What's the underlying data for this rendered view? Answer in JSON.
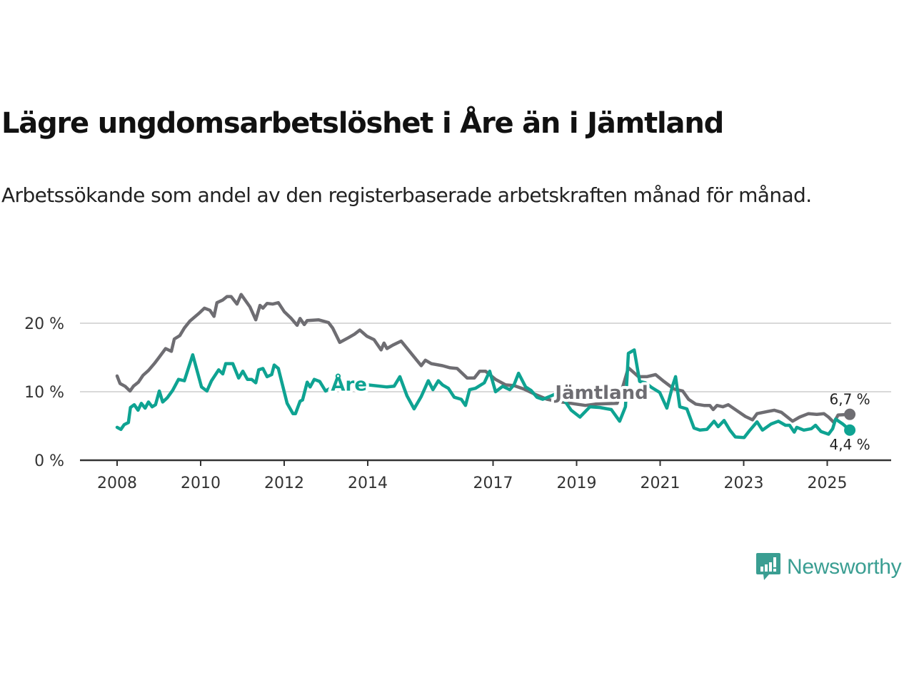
{
  "header": {
    "title": "Lägre ungdomsarbetslöshet i Åre än i Jämtland",
    "subtitle": "Arbetssökande som andel av den registerbaserade arbetskraften månad för månad."
  },
  "branding": {
    "name": "Newsworthy",
    "icon": "newsworthy-chart-bubble-icon",
    "color": "#3a9e92"
  },
  "chart_data": {
    "type": "line",
    "title": "Lägre ungdomsarbetslöshet i Åre än i Jämtland",
    "subtitle": "Arbetssökande som andel av den registerbaserade arbetskraften månad för månad.",
    "xlabel": "",
    "ylabel": "",
    "xlim": [
      2007.2,
      2026.5
    ],
    "ylim": [
      0,
      25
    ],
    "y_ticks": [
      0,
      10,
      20
    ],
    "y_tick_labels": [
      "0 %",
      "10 %",
      "20 %"
    ],
    "x_ticks": [
      2008,
      2010,
      2012,
      2014,
      2017,
      2019,
      2021,
      2023,
      2025
    ],
    "x_tick_labels": [
      "2008",
      "2010",
      "2012",
      "2014",
      "2017",
      "2019",
      "2021",
      "2023",
      "2025"
    ],
    "grid": "horizontal",
    "legend": "inline labels",
    "series": [
      {
        "name": "Jämtland",
        "color": "#6e6d72",
        "end_label": "6,7 %",
        "end_value": 6.7,
        "points": [
          [
            2008.0,
            12.3
          ],
          [
            2008.07,
            11.2
          ],
          [
            2008.19,
            10.8
          ],
          [
            2008.31,
            10.1
          ],
          [
            2008.39,
            10.8
          ],
          [
            2008.51,
            11.4
          ],
          [
            2008.62,
            12.4
          ],
          [
            2008.75,
            13.1
          ],
          [
            2008.89,
            14.1
          ],
          [
            2008.99,
            14.9
          ],
          [
            2009.16,
            16.3
          ],
          [
            2009.3,
            15.9
          ],
          [
            2009.37,
            17.7
          ],
          [
            2009.5,
            18.2
          ],
          [
            2009.61,
            19.3
          ],
          [
            2009.74,
            20.3
          ],
          [
            2009.95,
            21.4
          ],
          [
            2010.09,
            22.2
          ],
          [
            2010.22,
            21.9
          ],
          [
            2010.32,
            21.0
          ],
          [
            2010.39,
            23.0
          ],
          [
            2010.53,
            23.4
          ],
          [
            2010.63,
            23.9
          ],
          [
            2010.73,
            23.9
          ],
          [
            2010.87,
            22.8
          ],
          [
            2010.97,
            24.2
          ],
          [
            2011.18,
            22.4
          ],
          [
            2011.32,
            20.5
          ],
          [
            2011.42,
            22.6
          ],
          [
            2011.49,
            22.2
          ],
          [
            2011.59,
            22.9
          ],
          [
            2011.73,
            22.8
          ],
          [
            2011.86,
            23.0
          ],
          [
            2012.0,
            21.7
          ],
          [
            2012.17,
            20.7
          ],
          [
            2012.31,
            19.7
          ],
          [
            2012.38,
            20.7
          ],
          [
            2012.48,
            19.8
          ],
          [
            2012.55,
            20.4
          ],
          [
            2012.82,
            20.5
          ],
          [
            2013.06,
            20.1
          ],
          [
            2013.16,
            19.3
          ],
          [
            2013.33,
            17.2
          ],
          [
            2013.54,
            17.9
          ],
          [
            2013.68,
            18.4
          ],
          [
            2013.81,
            19.0
          ],
          [
            2013.98,
            18.1
          ],
          [
            2014.15,
            17.6
          ],
          [
            2014.32,
            16.1
          ],
          [
            2014.39,
            17.1
          ],
          [
            2014.46,
            16.3
          ],
          [
            2014.6,
            16.8
          ],
          [
            2014.8,
            17.4
          ],
          [
            2015.04,
            15.6
          ],
          [
            2015.28,
            13.8
          ],
          [
            2015.38,
            14.6
          ],
          [
            2015.52,
            14.1
          ],
          [
            2015.79,
            13.8
          ],
          [
            2015.97,
            13.5
          ],
          [
            2016.14,
            13.4
          ],
          [
            2016.38,
            12.0
          ],
          [
            2016.55,
            12.0
          ],
          [
            2016.68,
            13.0
          ],
          [
            2016.82,
            13.0
          ],
          [
            2017.06,
            11.8
          ],
          [
            2017.3,
            11.0
          ],
          [
            2017.5,
            10.9
          ],
          [
            2017.74,
            10.4
          ],
          [
            2017.98,
            9.7
          ],
          [
            2018.29,
            8.9
          ],
          [
            2018.53,
            8.6
          ],
          [
            2018.87,
            8.3
          ],
          [
            2019.21,
            8.0
          ],
          [
            2019.45,
            8.2
          ],
          [
            2019.97,
            8.3
          ],
          [
            2020.1,
            10.6
          ],
          [
            2020.24,
            13.5
          ],
          [
            2020.48,
            12.2
          ],
          [
            2020.68,
            12.2
          ],
          [
            2020.89,
            12.5
          ],
          [
            2021.09,
            11.5
          ],
          [
            2021.33,
            10.4
          ],
          [
            2021.54,
            10.1
          ],
          [
            2021.68,
            8.9
          ],
          [
            2021.85,
            8.2
          ],
          [
            2022.05,
            8.0
          ],
          [
            2022.19,
            8.0
          ],
          [
            2022.27,
            7.4
          ],
          [
            2022.36,
            8.0
          ],
          [
            2022.5,
            7.8
          ],
          [
            2022.63,
            8.1
          ],
          [
            2022.87,
            7.1
          ],
          [
            2023.04,
            6.4
          ],
          [
            2023.21,
            5.9
          ],
          [
            2023.32,
            6.8
          ],
          [
            2023.56,
            7.1
          ],
          [
            2023.73,
            7.3
          ],
          [
            2023.9,
            7.0
          ],
          [
            2024.17,
            5.7
          ],
          [
            2024.34,
            6.3
          ],
          [
            2024.55,
            6.8
          ],
          [
            2024.75,
            6.7
          ],
          [
            2024.92,
            6.8
          ],
          [
            2025.03,
            6.3
          ],
          [
            2025.16,
            5.5
          ],
          [
            2025.26,
            6.6
          ],
          [
            2025.54,
            6.7
          ]
        ]
      },
      {
        "name": "Åre",
        "color": "#0ea392",
        "end_label": "4,4 %",
        "end_value": 4.4,
        "points": [
          [
            2008.0,
            4.8
          ],
          [
            2008.09,
            4.5
          ],
          [
            2008.17,
            5.2
          ],
          [
            2008.27,
            5.5
          ],
          [
            2008.32,
            7.7
          ],
          [
            2008.41,
            8.1
          ],
          [
            2008.5,
            7.3
          ],
          [
            2008.58,
            8.3
          ],
          [
            2008.67,
            7.6
          ],
          [
            2008.75,
            8.5
          ],
          [
            2008.84,
            7.8
          ],
          [
            2008.92,
            8.1
          ],
          [
            2009.01,
            10.1
          ],
          [
            2009.09,
            8.5
          ],
          [
            2009.2,
            9.1
          ],
          [
            2009.33,
            10.2
          ],
          [
            2009.47,
            11.8
          ],
          [
            2009.61,
            11.6
          ],
          [
            2009.81,
            15.4
          ],
          [
            2010.02,
            10.7
          ],
          [
            2010.15,
            10.1
          ],
          [
            2010.26,
            11.6
          ],
          [
            2010.43,
            13.2
          ],
          [
            2010.53,
            12.6
          ],
          [
            2010.6,
            14.1
          ],
          [
            2010.77,
            14.1
          ],
          [
            2010.91,
            12.0
          ],
          [
            2011.01,
            13.0
          ],
          [
            2011.12,
            11.8
          ],
          [
            2011.22,
            11.8
          ],
          [
            2011.32,
            11.3
          ],
          [
            2011.39,
            13.2
          ],
          [
            2011.49,
            13.4
          ],
          [
            2011.59,
            12.2
          ],
          [
            2011.7,
            12.5
          ],
          [
            2011.76,
            13.9
          ],
          [
            2011.86,
            13.4
          ],
          [
            2012.07,
            8.3
          ],
          [
            2012.21,
            6.8
          ],
          [
            2012.27,
            6.8
          ],
          [
            2012.38,
            8.6
          ],
          [
            2012.44,
            8.8
          ],
          [
            2012.55,
            11.4
          ],
          [
            2012.62,
            10.7
          ],
          [
            2012.72,
            11.8
          ],
          [
            2012.85,
            11.5
          ],
          [
            2012.99,
            10.1
          ],
          [
            2013.16,
            10.7
          ],
          [
            2013.26,
            11.3
          ],
          [
            2013.5,
            11.1
          ],
          [
            2014.0,
            11.0
          ],
          [
            2014.46,
            10.7
          ],
          [
            2014.63,
            10.8
          ],
          [
            2014.77,
            12.2
          ],
          [
            2014.94,
            9.4
          ],
          [
            2015.11,
            7.5
          ],
          [
            2015.28,
            9.3
          ],
          [
            2015.45,
            11.6
          ],
          [
            2015.56,
            10.3
          ],
          [
            2015.69,
            11.6
          ],
          [
            2015.79,
            11.0
          ],
          [
            2015.93,
            10.5
          ],
          [
            2016.07,
            9.2
          ],
          [
            2016.24,
            8.9
          ],
          [
            2016.34,
            8.0
          ],
          [
            2016.44,
            10.3
          ],
          [
            2016.58,
            10.5
          ],
          [
            2016.79,
            11.3
          ],
          [
            2016.92,
            13.0
          ],
          [
            2017.06,
            10.0
          ],
          [
            2017.23,
            10.8
          ],
          [
            2017.4,
            10.3
          ],
          [
            2017.5,
            11.0
          ],
          [
            2017.61,
            12.7
          ],
          [
            2017.78,
            10.7
          ],
          [
            2017.91,
            10.2
          ],
          [
            2018.05,
            9.2
          ],
          [
            2018.19,
            8.9
          ],
          [
            2018.39,
            9.4
          ],
          [
            2018.5,
            9.7
          ],
          [
            2018.7,
            8.8
          ],
          [
            2018.87,
            7.3
          ],
          [
            2019.08,
            6.3
          ],
          [
            2019.32,
            7.8
          ],
          [
            2019.56,
            7.7
          ],
          [
            2019.83,
            7.4
          ],
          [
            2020.03,
            5.7
          ],
          [
            2020.17,
            7.8
          ],
          [
            2020.24,
            15.6
          ],
          [
            2020.38,
            16.1
          ],
          [
            2020.51,
            11.5
          ],
          [
            2020.65,
            11.3
          ],
          [
            2020.8,
            10.6
          ],
          [
            2020.99,
            9.9
          ],
          [
            2021.16,
            7.6
          ],
          [
            2021.3,
            10.9
          ],
          [
            2021.37,
            12.2
          ],
          [
            2021.47,
            7.8
          ],
          [
            2021.64,
            7.5
          ],
          [
            2021.81,
            4.7
          ],
          [
            2021.95,
            4.4
          ],
          [
            2022.12,
            4.5
          ],
          [
            2022.29,
            5.7
          ],
          [
            2022.39,
            4.9
          ],
          [
            2022.53,
            5.8
          ],
          [
            2022.67,
            4.4
          ],
          [
            2022.8,
            3.4
          ],
          [
            2023.01,
            3.3
          ],
          [
            2023.15,
            4.4
          ],
          [
            2023.32,
            5.6
          ],
          [
            2023.45,
            4.4
          ],
          [
            2023.66,
            5.3
          ],
          [
            2023.83,
            5.7
          ],
          [
            2024.0,
            5.1
          ],
          [
            2024.1,
            5.1
          ],
          [
            2024.21,
            4.1
          ],
          [
            2024.27,
            4.8
          ],
          [
            2024.44,
            4.4
          ],
          [
            2024.62,
            4.6
          ],
          [
            2024.72,
            5.1
          ],
          [
            2024.85,
            4.2
          ],
          [
            2025.03,
            3.8
          ],
          [
            2025.13,
            4.6
          ],
          [
            2025.2,
            6.0
          ],
          [
            2025.37,
            5.3
          ],
          [
            2025.54,
            4.4
          ]
        ]
      }
    ],
    "annotations": [
      {
        "text": "Åre",
        "series": "Åre",
        "x": 2013.55,
        "y": 11.1
      },
      {
        "text": "Jämtland",
        "series": "Jämtland",
        "x": 2019.6,
        "y": 9.9
      }
    ]
  }
}
